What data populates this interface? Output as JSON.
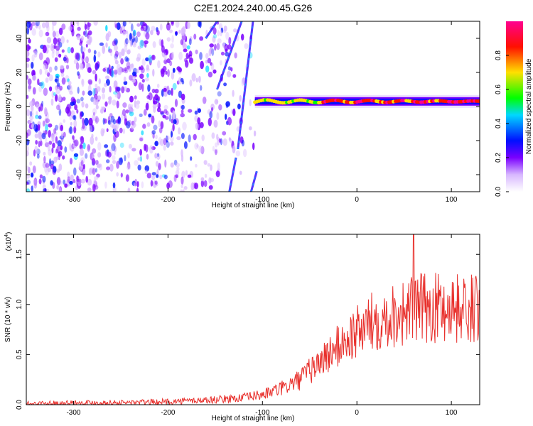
{
  "title": "C2E1.2024.240.00.45.G26",
  "chart_data": [
    {
      "type": "heatmap",
      "xlabel": "Height of straight line (km)",
      "ylabel": "Frequency (Hz)",
      "xlim": [
        -350,
        130
      ],
      "ylim": [
        -50,
        50
      ],
      "x_ticks": [
        -300,
        -200,
        -100,
        0,
        100
      ],
      "y_ticks": [
        -40,
        -20,
        0,
        20,
        40
      ],
      "colorbar": {
        "label": "Normalized spectral amplitude",
        "range": [
          0,
          1
        ],
        "ticks": [
          0.0,
          0.2,
          0.4,
          0.6,
          0.8
        ],
        "colormap": [
          "#ffffff",
          "#8a00ff",
          "#0000ff",
          "#00c8ff",
          "#00ff00",
          "#ffd000",
          "#ff0000",
          "#ff0090"
        ]
      },
      "features": {
        "signal_band": {
          "x_range": [
            -108,
            130
          ],
          "freq_hz": 3
        },
        "noise_region": {
          "x_range": [
            -350,
            -108
          ]
        },
        "curved_traces": [
          {
            "x": [
              -160,
              -148
            ],
            "freq_hz": [
              40,
              50
            ]
          },
          {
            "x": [
              -148,
              -122
            ],
            "freq_hz": [
              10,
              50
            ]
          },
          {
            "x": [
              -126,
              -110
            ],
            "freq_hz": [
              -25,
              50
            ]
          },
          {
            "x": [
              -135,
              -128
            ],
            "freq_hz": [
              -50,
              -30
            ]
          },
          {
            "x": [
              -112,
              -106
            ],
            "freq_hz": [
              -50,
              -38
            ]
          }
        ]
      }
    },
    {
      "type": "line",
      "xlabel": "Height of straight line (km)",
      "ylabel": "SNR (10 * v/v)",
      "y_scale_label": "(x10",
      "y_scale_exp": "4",
      "y_scale_close": ")",
      "xlim": [
        -350,
        130
      ],
      "ylim": [
        0,
        1.7
      ],
      "x_ticks": [
        -300,
        -200,
        -100,
        0,
        100
      ],
      "y_ticks": [
        "0.0",
        "0.5",
        "1.0",
        "1.5"
      ],
      "y_tick_values": [
        0,
        0.5,
        1.0,
        1.5
      ],
      "series": [
        {
          "color": "#e8302c",
          "x": [
            -350,
            -300,
            -250,
            -200,
            -150,
            -120,
            -100,
            -80,
            -60,
            -40,
            -20,
            0,
            20,
            40,
            60,
            80,
            100,
            130
          ],
          "y": [
            0.01,
            0.02,
            0.02,
            0.03,
            0.05,
            0.07,
            0.1,
            0.16,
            0.25,
            0.42,
            0.58,
            0.72,
            0.85,
            0.9,
            0.95,
            0.97,
            0.97,
            0.95
          ]
        }
      ]
    }
  ]
}
